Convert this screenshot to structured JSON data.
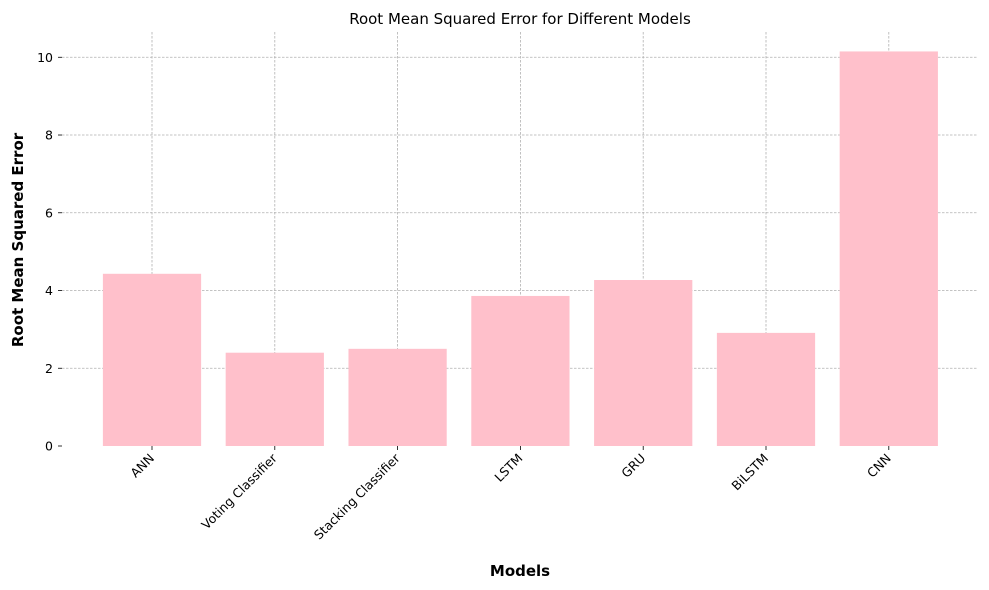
{
  "chart_data": {
    "type": "bar",
    "title": "Root Mean Squared Error for Different Models",
    "xlabel": "Models",
    "ylabel": "Root Mean Squared Error",
    "categories": [
      "ANN",
      "Voting Classifier",
      "Stacking Classifier",
      "LSTM",
      "GRU",
      "BiLSTM",
      "CNN"
    ],
    "values": [
      4.43,
      2.4,
      2.5,
      3.86,
      4.27,
      2.91,
      10.15
    ],
    "ylim": [
      0,
      10.65
    ],
    "yticks": [
      0,
      2,
      4,
      6,
      8,
      10
    ],
    "grid": true,
    "bar_color": "#ffc0cb",
    "xtick_rotation": 45
  }
}
